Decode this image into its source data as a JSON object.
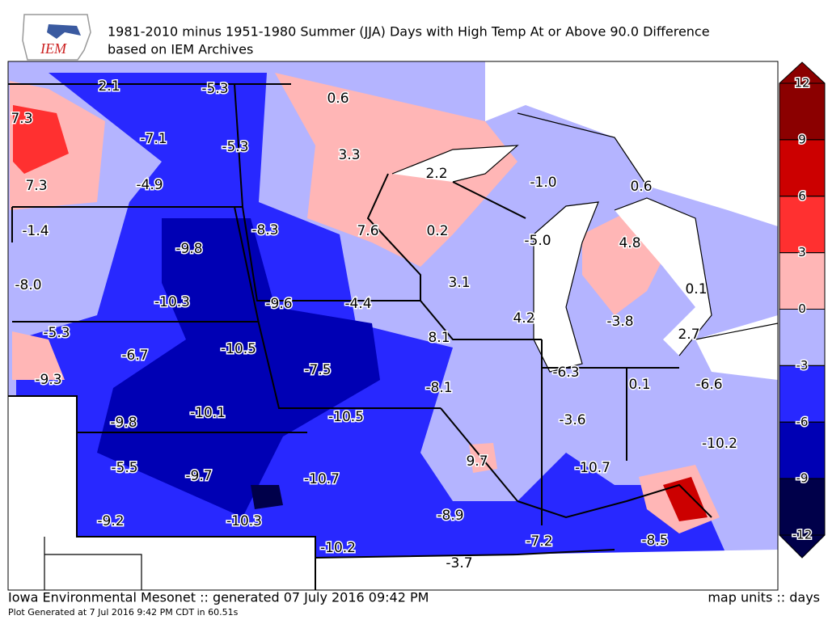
{
  "header": {
    "logo": "IEM",
    "title_line1": "1981-2010 minus 1951-1980 Summer (JJA) Days with High Temp At or Above 90.0 Difference",
    "title_line2": "based on IEM Archives"
  },
  "map": {
    "labels": [
      "2.1",
      "-5.3",
      "0.6",
      "7.3",
      "-7.1",
      "-5.3",
      "3.3",
      "2.2",
      "-1.0",
      "0.6",
      "7.3",
      "-4.9",
      "-1.4",
      "-9.8",
      "-8.3",
      "7.6",
      "0.2",
      "-5.0",
      "4.8",
      "-8.0",
      "-10.3",
      "-9.6",
      "-4.4",
      "3.1",
      "0.1",
      "4.2",
      "-3.8",
      "-5.3",
      "-6.7",
      "-10.5",
      "8.1",
      "2.7",
      "-9.3",
      "-7.5",
      "-6.3",
      "0.1",
      "-6.6",
      "-8.1",
      "-10.1",
      "-10.5",
      "-9.8",
      "-3.6",
      "-10.2",
      "-5.5",
      "-9.7",
      "-10.7",
      "9.7",
      "-10.7",
      "-9.2",
      "-10.3",
      "-8.9",
      "-10.2",
      "-7.2",
      "-8.5",
      "-3.7"
    ]
  },
  "colorbar": {
    "levels": [
      12,
      9,
      6,
      3,
      0,
      -3,
      -6,
      -9,
      -12
    ],
    "colors": [
      "#8b0000",
      "#cc0000",
      "#ff3030",
      "#ffb6b6",
      "#b4b4ff",
      "#2828ff",
      "#0000b4",
      "#00004a"
    ]
  },
  "footer": {
    "left": "Iowa Environmental Mesonet :: generated 07 July 2016 09:42 PM",
    "right": "map units :: days",
    "small": "Plot Generated at 7 Jul 2016 9:42 PM CDT in 60.51s"
  }
}
